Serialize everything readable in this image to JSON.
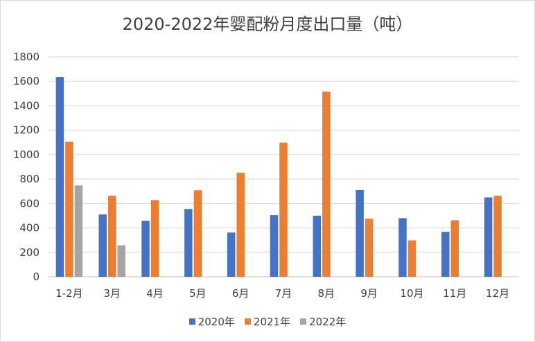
{
  "chart_data": {
    "type": "bar",
    "title": "2020-2022年婴配粉月度出口量（吨）",
    "categories": [
      "1-2月",
      "3月",
      "4月",
      "5月",
      "6月",
      "7月",
      "8月",
      "9月",
      "10月",
      "11月",
      "12月"
    ],
    "series": [
      {
        "name": "2020年",
        "color": "#4472C4",
        "values": [
          1635,
          510,
          458,
          555,
          362,
          505,
          500,
          710,
          480,
          368,
          650
        ]
      },
      {
        "name": "2021年",
        "color": "#ED7D31",
        "values": [
          1105,
          663,
          628,
          708,
          852,
          1098,
          1515,
          475,
          298,
          463,
          663
        ]
      },
      {
        "name": "2022年",
        "color": "#A5A5A5",
        "values": [
          748,
          258,
          null,
          null,
          null,
          null,
          null,
          null,
          null,
          null,
          null
        ]
      }
    ],
    "ylim": [
      0,
      1800
    ],
    "yticks": [
      0,
      200,
      400,
      600,
      800,
      1000,
      1200,
      1400,
      1600,
      1800
    ],
    "grid": true,
    "legend_position": "bottom"
  }
}
